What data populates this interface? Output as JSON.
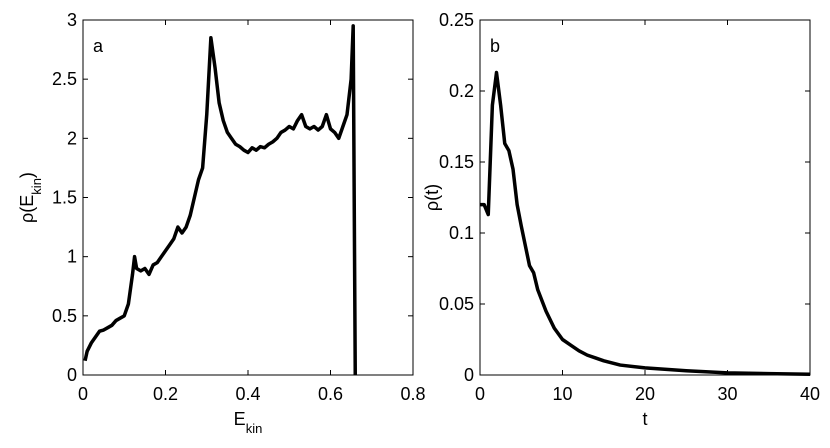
{
  "chart_data": [
    {
      "type": "line",
      "annotation": "a",
      "xlabel": [
        "E",
        "kin",
        ""
      ],
      "ylabel": [
        "ρ(E",
        "kin",
        ")"
      ],
      "xlim": [
        0,
        0.8
      ],
      "xticks": [
        0,
        0.2,
        0.4,
        0.6,
        0.8
      ],
      "ylim": [
        0,
        3
      ],
      "yticks": [
        0,
        0.5,
        1,
        1.5,
        2,
        2.5,
        3
      ],
      "x": [
        0.005,
        0.01,
        0.02,
        0.03,
        0.04,
        0.05,
        0.06,
        0.07,
        0.08,
        0.09,
        0.1,
        0.11,
        0.12,
        0.125,
        0.13,
        0.14,
        0.15,
        0.16,
        0.17,
        0.18,
        0.19,
        0.2,
        0.21,
        0.22,
        0.23,
        0.24,
        0.25,
        0.26,
        0.27,
        0.28,
        0.29,
        0.3,
        0.31,
        0.32,
        0.33,
        0.34,
        0.35,
        0.36,
        0.37,
        0.38,
        0.39,
        0.4,
        0.41,
        0.42,
        0.43,
        0.44,
        0.45,
        0.46,
        0.47,
        0.48,
        0.49,
        0.5,
        0.51,
        0.52,
        0.53,
        0.54,
        0.55,
        0.56,
        0.57,
        0.58,
        0.59,
        0.6,
        0.61,
        0.62,
        0.63,
        0.64,
        0.65,
        0.655,
        0.66
      ],
      "series": [
        {
          "color": "#000000",
          "values": [
            0.12,
            0.2,
            0.27,
            0.32,
            0.37,
            0.38,
            0.4,
            0.42,
            0.46,
            0.48,
            0.5,
            0.6,
            0.85,
            1.0,
            0.9,
            0.88,
            0.9,
            0.85,
            0.93,
            0.95,
            1.0,
            1.05,
            1.1,
            1.15,
            1.25,
            1.2,
            1.25,
            1.35,
            1.5,
            1.65,
            1.75,
            2.2,
            2.85,
            2.6,
            2.3,
            2.15,
            2.05,
            2.0,
            1.95,
            1.93,
            1.9,
            1.88,
            1.92,
            1.9,
            1.93,
            1.92,
            1.95,
            1.97,
            2.0,
            2.05,
            2.07,
            2.1,
            2.08,
            2.15,
            2.2,
            2.1,
            2.08,
            2.1,
            2.07,
            2.1,
            2.2,
            2.08,
            2.05,
            2.0,
            2.1,
            2.2,
            2.5,
            2.95,
            0
          ]
        }
      ]
    },
    {
      "type": "line",
      "annotation": "b",
      "xlabel": [
        "t",
        "",
        ""
      ],
      "ylabel": [
        "ρ(t)",
        "",
        ""
      ],
      "xlim": [
        0,
        40
      ],
      "xticks": [
        0,
        10,
        20,
        30,
        40
      ],
      "ylim": [
        0,
        0.25
      ],
      "yticks": [
        0,
        0.05,
        0.1,
        0.15,
        0.2,
        0.25
      ],
      "x": [
        0,
        0.5,
        1,
        1.5,
        2,
        2.5,
        3,
        3.5,
        4,
        4.5,
        5,
        6,
        6.5,
        7,
        8,
        9,
        10,
        11,
        12,
        13,
        14,
        15,
        17,
        20,
        25,
        30,
        35,
        40
      ],
      "series": [
        {
          "color": "#000000",
          "values": [
            0.12,
            0.12,
            0.113,
            0.19,
            0.213,
            0.19,
            0.163,
            0.158,
            0.145,
            0.12,
            0.105,
            0.077,
            0.072,
            0.06,
            0.045,
            0.033,
            0.025,
            0.021,
            0.017,
            0.014,
            0.012,
            0.01,
            0.007,
            0.005,
            0.003,
            0.0015,
            0.001,
            0.0005
          ]
        }
      ]
    }
  ]
}
